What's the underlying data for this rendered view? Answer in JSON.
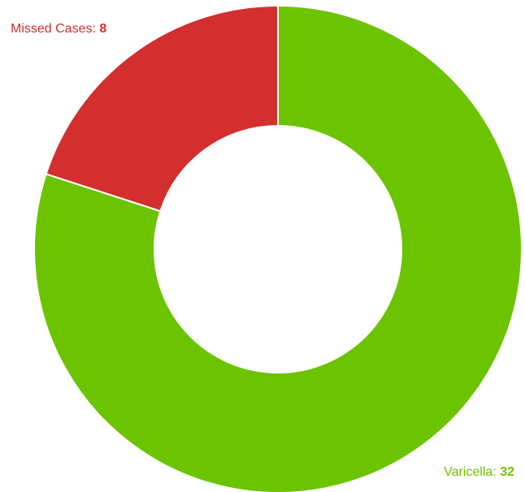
{
  "chart_data": {
    "type": "pie",
    "variant": "donut",
    "title": "",
    "slices": [
      {
        "label": "Varicella",
        "value": 32,
        "color": "#6cc400"
      },
      {
        "label": "Missed Cases",
        "value": 8,
        "color": "#d32f2f"
      }
    ],
    "label_separator": ": ",
    "legend": "none",
    "start_angle_deg": 0,
    "direction": "clockwise"
  }
}
